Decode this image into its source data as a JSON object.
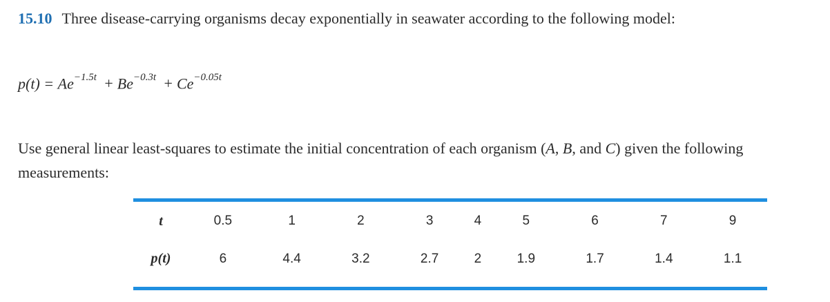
{
  "problem": {
    "number": "15.10",
    "statement": "Three disease-carrying organisms decay exponentially in seawater according to the following model:"
  },
  "equation": {
    "lhs": "p(t) =",
    "term1_coef": "Ae",
    "term1_exp": "−1.5t",
    "plus1": "+",
    "term2_coef": "Be",
    "term2_exp": "−0.3t",
    "plus2": "+",
    "term3_coef": "Ce",
    "term3_exp": "−0.05t"
  },
  "instructions": {
    "part1": "Use general linear least-squares to estimate the initial concentration of each organism (",
    "var_a": "A",
    "sep1": ", ",
    "var_b": "B",
    "sep2": ", and ",
    "var_c": "C",
    "part2": ") given the following measurements:"
  },
  "table": {
    "row_t_label": "t",
    "row_p_label": "p(t)",
    "t_values": [
      "0.5",
      "1",
      "2",
      "3",
      "4",
      "5",
      "6",
      "7",
      "9"
    ],
    "p_values": [
      "6",
      "4.4",
      "3.2",
      "2.7",
      "2",
      "1.9",
      "1.7",
      "1.4",
      "1.1"
    ]
  }
}
